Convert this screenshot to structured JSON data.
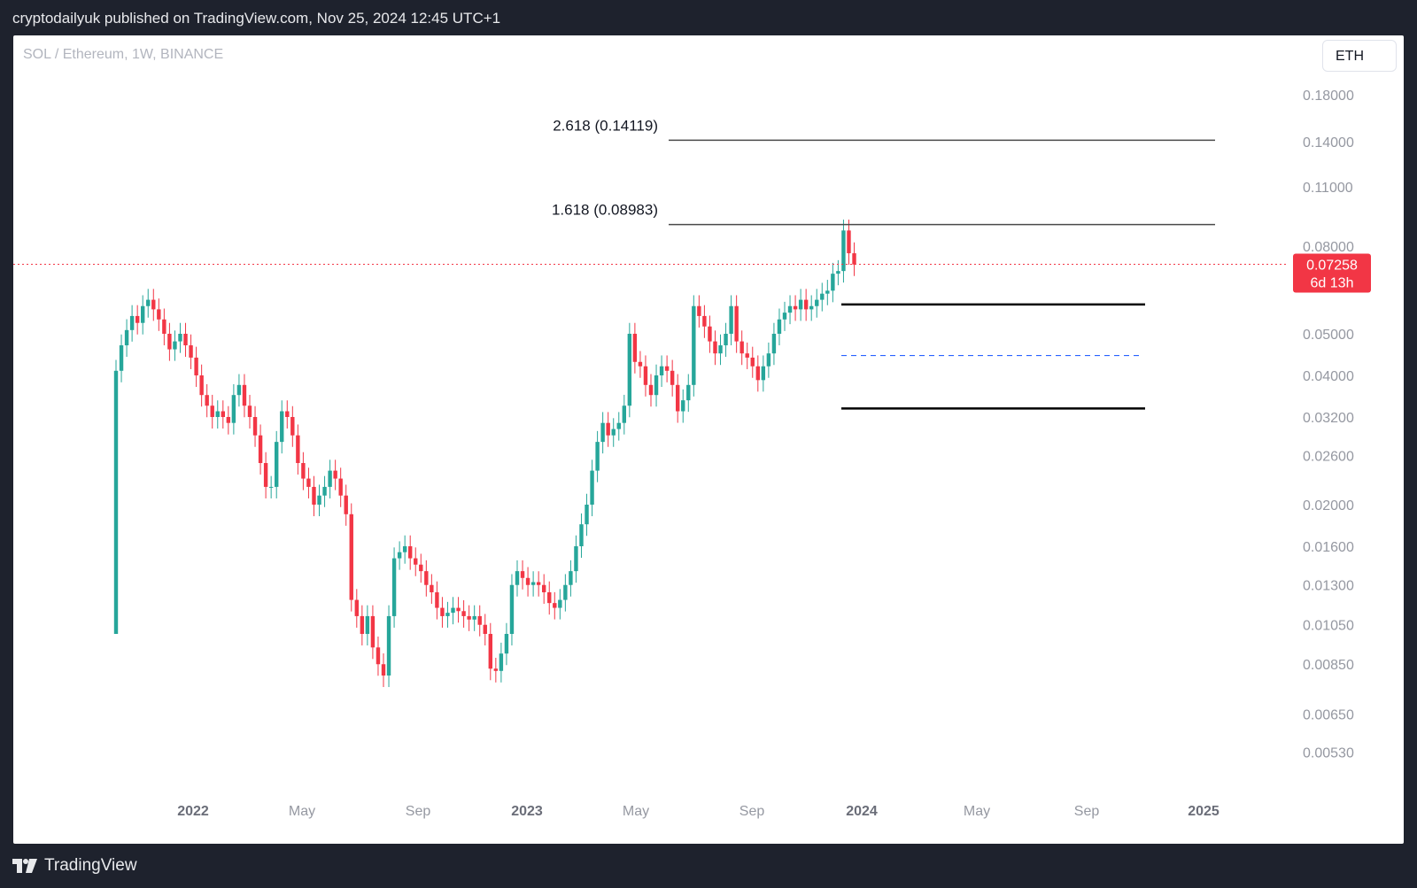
{
  "header": {
    "publish_text": "cryptodailyuk published on TradingView.com, Nov 25, 2024 12:45 UTC+1"
  },
  "footer": {
    "brand": "TradingView"
  },
  "toolbar": {
    "symbol": "SOL / Ethereum, 1W, BINANCE",
    "currency": "ETH"
  },
  "colors": {
    "up": "#26a69a",
    "down": "#f23645",
    "level_line": "#000000",
    "mid_line": "#2962ff",
    "price_tag": "#f23645",
    "axis_text": "#9598a1"
  },
  "chart_data": {
    "type": "candlestick",
    "title": "SOL / Ethereum, 1W, BINANCE",
    "scale": "log",
    "ylim": [
      0.0047,
      0.2
    ],
    "x_tick_labels": [
      "2022",
      "May",
      "Sep",
      "2023",
      "May",
      "Sep",
      "2024",
      "May",
      "Sep",
      "2025"
    ],
    "y_tick_labels": [
      "0.18000",
      "0.14000",
      "0.11000",
      "0.08000",
      "0.05000",
      "0.04000",
      "0.03200",
      "0.02600",
      "0.02000",
      "0.01600",
      "0.01300",
      "0.01050",
      "0.00850",
      "0.00650",
      "0.00530"
    ],
    "fib_levels": [
      {
        "label": "2.618 (0.14119)",
        "value": 0.14119
      },
      {
        "label": "1.618 (0.08983)",
        "value": 0.08983
      }
    ],
    "range_box": {
      "top": 0.0585,
      "mid": 0.0445,
      "bottom": 0.0335
    },
    "last_price": {
      "value": "0.07258",
      "countdown": "6d 13h"
    },
    "weekly_closes": [
      0.041,
      0.047,
      0.051,
      0.055,
      0.053,
      0.058,
      0.06,
      0.057,
      0.054,
      0.05,
      0.046,
      0.048,
      0.05,
      0.047,
      0.044,
      0.04,
      0.036,
      0.034,
      0.032,
      0.033,
      0.032,
      0.031,
      0.036,
      0.038,
      0.034,
      0.032,
      0.029,
      0.025,
      0.022,
      0.022,
      0.028,
      0.033,
      0.032,
      0.029,
      0.025,
      0.023,
      0.022,
      0.02,
      0.021,
      0.022,
      0.024,
      0.023,
      0.021,
      0.019,
      0.012,
      0.011,
      0.01,
      0.011,
      0.0093,
      0.0085,
      0.008,
      0.011,
      0.015,
      0.0155,
      0.016,
      0.015,
      0.0145,
      0.014,
      0.013,
      0.0125,
      0.0115,
      0.011,
      0.0112,
      0.0115,
      0.0113,
      0.011,
      0.0108,
      0.011,
      0.0105,
      0.01,
      0.0083,
      0.0082,
      0.009,
      0.01,
      0.013,
      0.014,
      0.0135,
      0.013,
      0.0132,
      0.013,
      0.0125,
      0.0118,
      0.0115,
      0.012,
      0.013,
      0.014,
      0.016,
      0.018,
      0.02,
      0.024,
      0.028,
      0.031,
      0.029,
      0.03,
      0.031,
      0.034,
      0.05,
      0.043,
      0.042,
      0.038,
      0.036,
      0.04,
      0.042,
      0.041,
      0.038,
      0.033,
      0.035,
      0.038,
      0.058,
      0.055,
      0.052,
      0.048,
      0.045,
      0.047,
      0.05,
      0.058,
      0.048,
      0.045,
      0.044,
      0.042,
      0.039,
      0.042,
      0.045,
      0.05,
      0.054,
      0.056,
      0.058,
      0.057,
      0.06,
      0.057,
      0.058,
      0.06,
      0.062,
      0.063,
      0.069,
      0.07,
      0.087,
      0.077,
      0.0725
    ]
  }
}
